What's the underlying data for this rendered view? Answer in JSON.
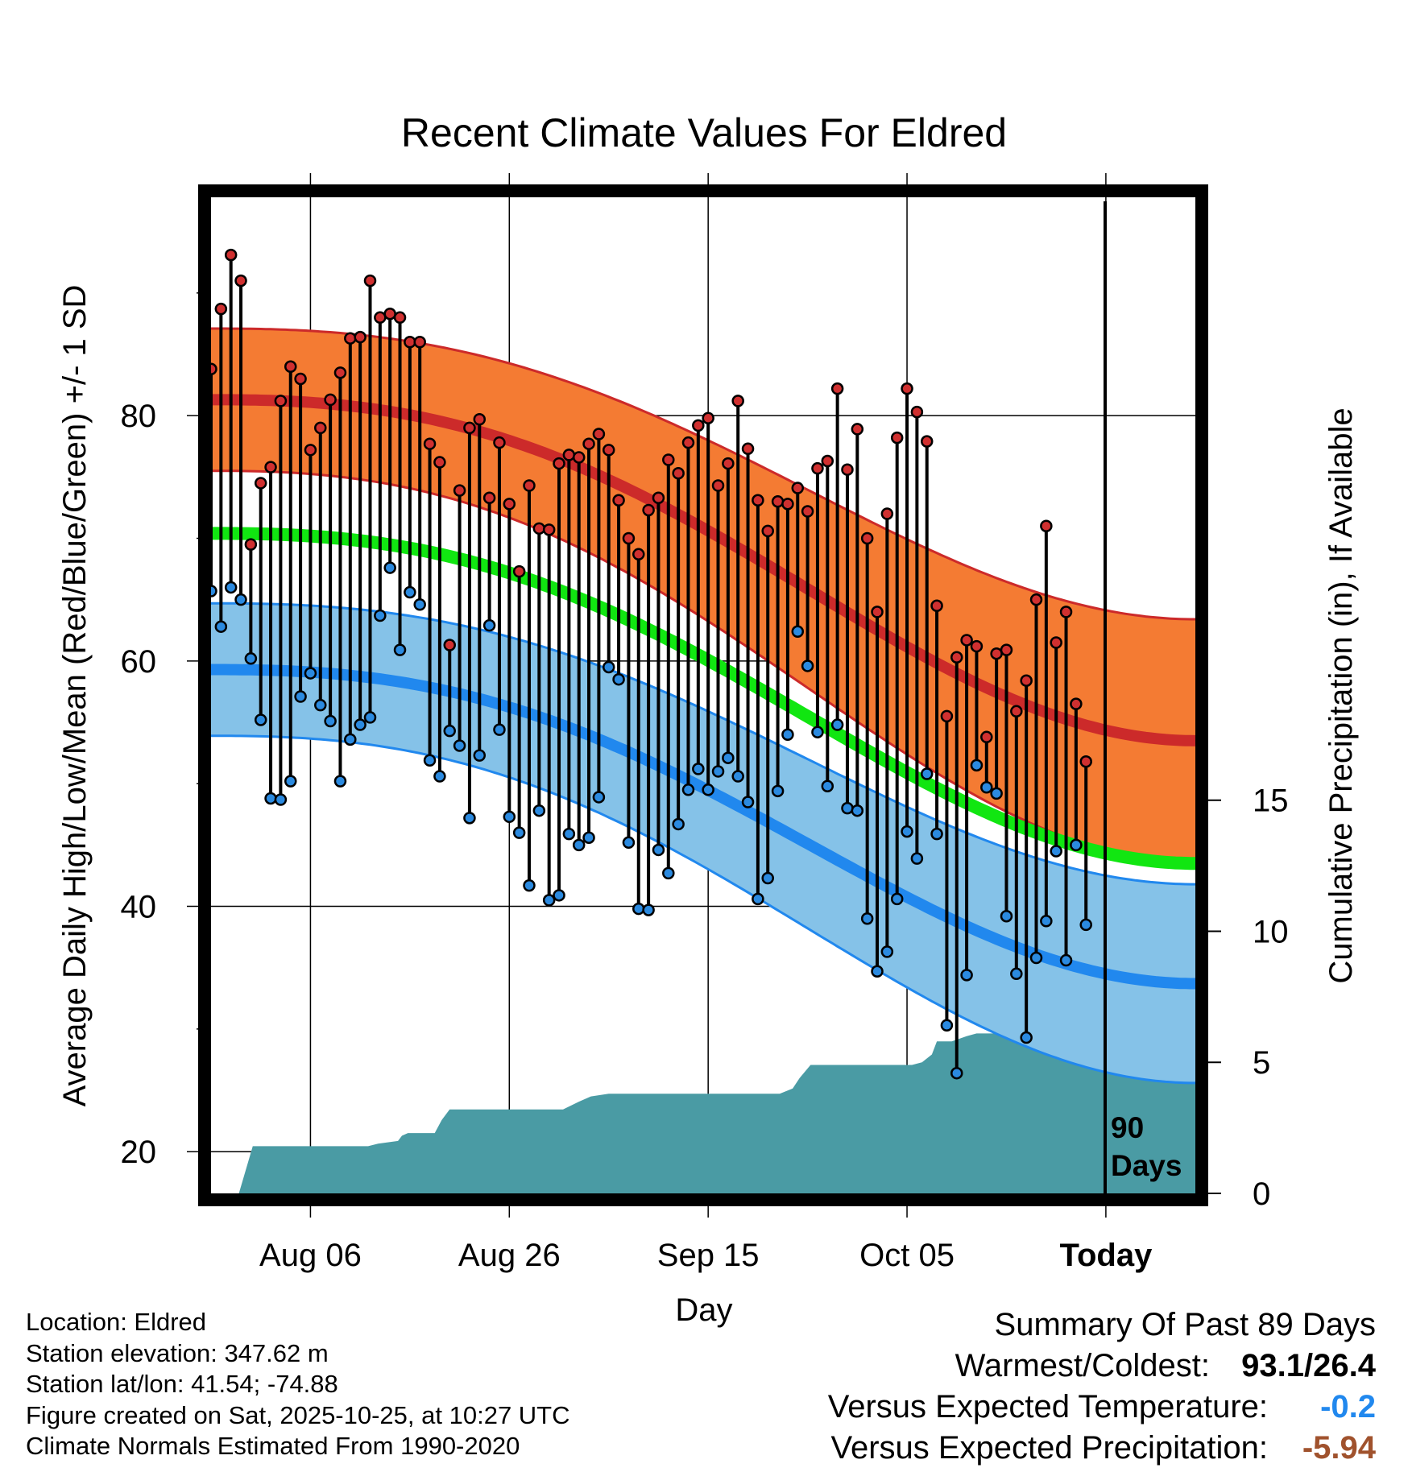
{
  "chart_data": {
    "type": "line",
    "title": "Recent Climate Values For Eldred",
    "xlabel": "Day",
    "ylabel": "Average Daily High/Low/Mean (Red/Blue/Green) +/- 1 SD",
    "y2label": "Cumulative Precipitation (in), If Available",
    "xlim": [
      -10,
      89
    ],
    "ylim": [
      16.6,
      97.8
    ],
    "y2lim": [
      0,
      38
    ],
    "x_tick_positions": [
      0,
      20,
      40,
      60,
      80
    ],
    "x_tick_labels": [
      "Aug 06",
      "Aug 26",
      "Sep 15",
      "Oct 05",
      "Today"
    ],
    "y_ticks": [
      20,
      40,
      60,
      80
    ],
    "y2_ticks": [
      0,
      5,
      10,
      15
    ],
    "today_marker": {
      "x": 80,
      "label_line1": "90",
      "label_line2": "Days"
    },
    "daily_high": [
      83.8,
      88.7,
      93.1,
      91.0,
      69.5,
      74.5,
      75.8,
      81.2,
      84.0,
      83.0,
      77.2,
      79.0,
      81.3,
      83.5,
      86.3,
      86.4,
      91.0,
      88.0,
      88.3,
      88.0,
      86.0,
      86.0,
      77.7,
      76.2,
      61.3,
      73.9,
      79.0,
      79.7,
      73.3,
      77.8,
      72.8,
      67.3,
      74.3,
      70.8,
      70.7,
      76.1,
      76.8,
      76.6,
      77.7,
      78.5,
      77.2,
      73.1,
      70.0,
      68.7,
      72.3,
      73.3,
      76.4,
      75.3,
      77.8,
      79.2,
      79.8,
      74.3,
      76.1,
      81.2,
      77.3,
      73.1,
      70.6,
      73.0,
      72.8,
      74.1,
      72.2,
      75.7,
      76.3,
      82.2,
      75.6,
      78.9,
      70.0,
      64.0,
      72.0,
      78.2,
      82.2,
      80.3,
      77.9,
      64.5,
      55.5,
      60.3,
      61.7,
      61.2,
      53.8,
      60.6,
      60.9,
      55.9,
      58.4,
      65.0,
      71.0,
      61.5,
      64.0,
      56.5,
      51.8
    ],
    "daily_low": [
      65.7,
      62.8,
      66.0,
      65.0,
      60.2,
      55.2,
      48.8,
      48.7,
      50.2,
      57.1,
      59.0,
      56.4,
      55.1,
      50.2,
      53.6,
      54.8,
      55.4,
      63.7,
      67.6,
      60.9,
      65.6,
      64.6,
      51.9,
      50.6,
      54.3,
      53.1,
      47.2,
      52.3,
      62.9,
      54.4,
      47.3,
      46.0,
      41.7,
      47.8,
      40.5,
      40.9,
      45.9,
      45.0,
      45.6,
      48.9,
      59.5,
      58.5,
      45.2,
      39.8,
      39.7,
      44.6,
      42.7,
      46.7,
      49.5,
      51.2,
      49.5,
      51.0,
      52.1,
      50.6,
      48.5,
      40.6,
      42.3,
      49.4,
      54.0,
      62.4,
      59.6,
      54.2,
      49.8,
      54.8,
      48.0,
      47.8,
      39.0,
      34.7,
      36.3,
      40.6,
      46.1,
      43.9,
      50.8,
      45.9,
      30.3,
      26.4,
      34.4,
      51.5,
      49.7,
      49.2,
      39.2,
      34.5,
      29.3,
      35.8,
      38.8,
      44.5,
      35.6,
      45.0,
      38.5
    ],
    "normal_high_mean_sd": {
      "start": [
        81.3,
        5.8
      ],
      "end": [
        53.5,
        9.9
      ]
    },
    "normal_low_mean_sd": {
      "start": [
        59.3,
        5.4
      ],
      "end": [
        33.7,
        8.1
      ]
    },
    "normal_mean": {
      "start": 70.4,
      "end": 43.5
    },
    "cumulative_precipitation": [
      [
        -10,
        0
      ],
      [
        -7.2,
        0
      ],
      [
        -5.8,
        1.8
      ],
      [
        5.8,
        1.8
      ],
      [
        6.8,
        1.9
      ],
      [
        8.8,
        2.0
      ],
      [
        9.2,
        2.2
      ],
      [
        9.8,
        2.3
      ],
      [
        12.5,
        2.3
      ],
      [
        13.2,
        2.8
      ],
      [
        14,
        3.2
      ],
      [
        18,
        3.2
      ],
      [
        20,
        3.2
      ],
      [
        23,
        3.2
      ],
      [
        25.4,
        3.2
      ],
      [
        27,
        3.5
      ],
      [
        28.2,
        3.7
      ],
      [
        30,
        3.8
      ],
      [
        37,
        3.8
      ],
      [
        38,
        3.8
      ],
      [
        40.3,
        3.8
      ],
      [
        47.2,
        3.8
      ],
      [
        48.5,
        4.0
      ],
      [
        49.2,
        4.4
      ],
      [
        50.3,
        4.9
      ],
      [
        52,
        4.9
      ],
      [
        53.8,
        4.9
      ],
      [
        58.5,
        4.9
      ],
      [
        60.5,
        4.9
      ],
      [
        61.5,
        5.0
      ],
      [
        62.5,
        5.3
      ],
      [
        63,
        5.8
      ],
      [
        64.5,
        5.8
      ],
      [
        66,
        6.0
      ],
      [
        67,
        6.1
      ],
      [
        72,
        6.1
      ],
      [
        72.8,
        6.2
      ],
      [
        74,
        6.5
      ],
      [
        75,
        6.6
      ],
      [
        80,
        6.6
      ],
      [
        82,
        6.6
      ],
      [
        89,
        6.6
      ]
    ],
    "series_colors": {
      "high_band": "#f47b33",
      "high_mean": "#cc2a2a",
      "low_band": "#85c2e8",
      "low_mean": "#2188ee",
      "mean": "#11e611",
      "precipitation": "#4a9ba4",
      "high_marker": "#d03030",
      "low_marker": "#2b8ae0"
    }
  },
  "footer": {
    "location": "Location: Eldred",
    "elevation": "Station elevation: 347.62 m",
    "latlon": "Station lat/lon: 41.54; -74.88",
    "created": "Figure created on Sat, 2025-10-25, at 10:27 UTC",
    "normals": "Climate Normals Estimated From 1990-2020"
  },
  "summary": {
    "heading": "Summary Of Past 89 Days",
    "warmest_coldest_label": "Warmest/Coldest:",
    "warmest_coldest_value": "93.1/26.4",
    "temp_label": "Versus Expected Temperature:",
    "temp_value": "-0.2",
    "temp_color": "#2188ee",
    "precip_label": "Versus Expected Precipitation:",
    "precip_value": "-5.94",
    "precip_color": "#a0522d"
  }
}
